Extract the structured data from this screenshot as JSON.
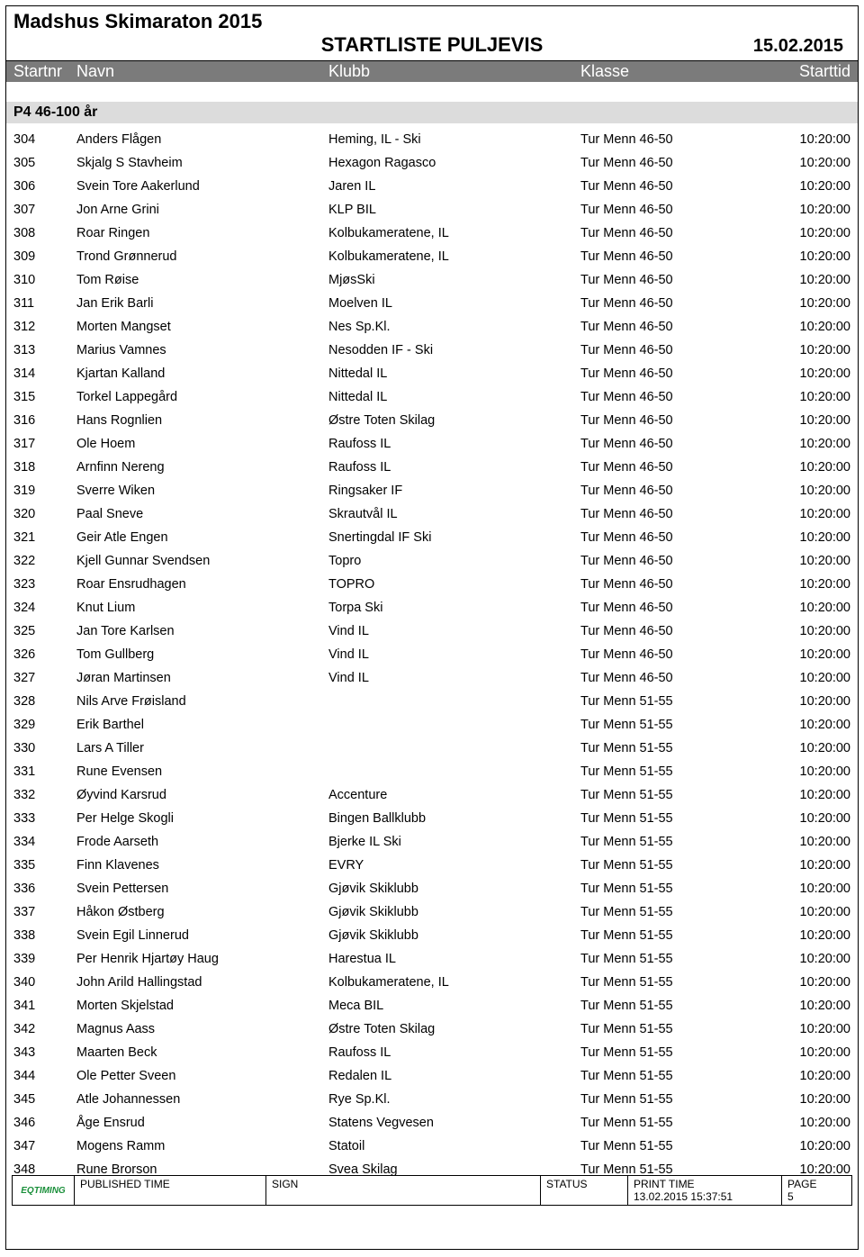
{
  "header": {
    "event_title": "Madshus Skimaraton 2015",
    "list_title": "STARTLISTE PULJEVIS",
    "date": "15.02.2015"
  },
  "columns": {
    "startnr": "Startnr",
    "navn": "Navn",
    "klubb": "Klubb",
    "klasse": "Klasse",
    "starttid": "Starttid"
  },
  "group": {
    "label": "P4 46-100 år"
  },
  "rows": [
    {
      "nr": "304",
      "navn": "Anders Flågen",
      "klubb": "Heming, IL - Ski",
      "klasse": "Tur Menn 46-50",
      "tid": "10:20:00"
    },
    {
      "nr": "305",
      "navn": "Skjalg S Stavheim",
      "klubb": "Hexagon Ragasco",
      "klasse": "Tur Menn 46-50",
      "tid": "10:20:00"
    },
    {
      "nr": "306",
      "navn": "Svein Tore Aakerlund",
      "klubb": "Jaren IL",
      "klasse": "Tur Menn 46-50",
      "tid": "10:20:00"
    },
    {
      "nr": "307",
      "navn": "Jon Arne Grini",
      "klubb": "KLP BIL",
      "klasse": "Tur Menn 46-50",
      "tid": "10:20:00"
    },
    {
      "nr": "308",
      "navn": "Roar Ringen",
      "klubb": "Kolbukameratene, IL",
      "klasse": "Tur Menn 46-50",
      "tid": "10:20:00"
    },
    {
      "nr": "309",
      "navn": "Trond Grønnerud",
      "klubb": "Kolbukameratene, IL",
      "klasse": "Tur Menn 46-50",
      "tid": "10:20:00"
    },
    {
      "nr": "310",
      "navn": "Tom Røise",
      "klubb": "MjøsSki",
      "klasse": "Tur Menn 46-50",
      "tid": "10:20:00"
    },
    {
      "nr": "311",
      "navn": "Jan Erik Barli",
      "klubb": "Moelven IL",
      "klasse": "Tur Menn 46-50",
      "tid": "10:20:00"
    },
    {
      "nr": "312",
      "navn": "Morten Mangset",
      "klubb": "Nes Sp.Kl.",
      "klasse": "Tur Menn 46-50",
      "tid": "10:20:00"
    },
    {
      "nr": "313",
      "navn": "Marius Vamnes",
      "klubb": "Nesodden IF - Ski",
      "klasse": "Tur Menn 46-50",
      "tid": "10:20:00"
    },
    {
      "nr": "314",
      "navn": "Kjartan Kalland",
      "klubb": "Nittedal IL",
      "klasse": "Tur Menn 46-50",
      "tid": "10:20:00"
    },
    {
      "nr": "315",
      "navn": "Torkel Lappegård",
      "klubb": "Nittedal IL",
      "klasse": "Tur Menn 46-50",
      "tid": "10:20:00"
    },
    {
      "nr": "316",
      "navn": "Hans Rognlien",
      "klubb": "Østre Toten Skilag",
      "klasse": "Tur Menn 46-50",
      "tid": "10:20:00"
    },
    {
      "nr": "317",
      "navn": "Ole Hoem",
      "klubb": "Raufoss IL",
      "klasse": "Tur Menn 46-50",
      "tid": "10:20:00"
    },
    {
      "nr": "318",
      "navn": "Arnfinn Nereng",
      "klubb": "Raufoss IL",
      "klasse": "Tur Menn 46-50",
      "tid": "10:20:00"
    },
    {
      "nr": "319",
      "navn": "Sverre Wiken",
      "klubb": "Ringsaker IF",
      "klasse": "Tur Menn 46-50",
      "tid": "10:20:00"
    },
    {
      "nr": "320",
      "navn": "Paal Sneve",
      "klubb": "Skrautvål IL",
      "klasse": "Tur Menn 46-50",
      "tid": "10:20:00"
    },
    {
      "nr": "321",
      "navn": "Geir Atle Engen",
      "klubb": "Snertingdal IF Ski",
      "klasse": "Tur Menn 46-50",
      "tid": "10:20:00"
    },
    {
      "nr": "322",
      "navn": "Kjell Gunnar Svendsen",
      "klubb": "Topro",
      "klasse": "Tur Menn 46-50",
      "tid": "10:20:00"
    },
    {
      "nr": "323",
      "navn": "Roar Ensrudhagen",
      "klubb": "TOPRO",
      "klasse": "Tur Menn 46-50",
      "tid": "10:20:00"
    },
    {
      "nr": "324",
      "navn": "Knut Lium",
      "klubb": "Torpa Ski",
      "klasse": "Tur Menn 46-50",
      "tid": "10:20:00"
    },
    {
      "nr": "325",
      "navn": "Jan Tore Karlsen",
      "klubb": "Vind IL",
      "klasse": "Tur Menn 46-50",
      "tid": "10:20:00"
    },
    {
      "nr": "326",
      "navn": "Tom Gullberg",
      "klubb": "Vind IL",
      "klasse": "Tur Menn 46-50",
      "tid": "10:20:00"
    },
    {
      "nr": "327",
      "navn": "Jøran Martinsen",
      "klubb": "Vind IL",
      "klasse": "Tur Menn 46-50",
      "tid": "10:20:00"
    },
    {
      "nr": "328",
      "navn": "Nils Arve Frøisland",
      "klubb": "",
      "klasse": "Tur Menn 51-55",
      "tid": "10:20:00"
    },
    {
      "nr": "329",
      "navn": "Erik Barthel",
      "klubb": "",
      "klasse": "Tur Menn 51-55",
      "tid": "10:20:00"
    },
    {
      "nr": "330",
      "navn": "Lars A Tiller",
      "klubb": "",
      "klasse": "Tur Menn 51-55",
      "tid": "10:20:00"
    },
    {
      "nr": "331",
      "navn": "Rune Evensen",
      "klubb": "",
      "klasse": "Tur Menn 51-55",
      "tid": "10:20:00"
    },
    {
      "nr": "332",
      "navn": "Øyvind Karsrud",
      "klubb": "Accenture",
      "klasse": "Tur Menn 51-55",
      "tid": "10:20:00"
    },
    {
      "nr": "333",
      "navn": "Per Helge Skogli",
      "klubb": "Bingen Ballklubb",
      "klasse": "Tur Menn 51-55",
      "tid": "10:20:00"
    },
    {
      "nr": "334",
      "navn": "Frode Aarseth",
      "klubb": "Bjerke IL Ski",
      "klasse": "Tur Menn 51-55",
      "tid": "10:20:00"
    },
    {
      "nr": "335",
      "navn": "Finn Klavenes",
      "klubb": "EVRY",
      "klasse": "Tur Menn 51-55",
      "tid": "10:20:00"
    },
    {
      "nr": "336",
      "navn": "Svein Pettersen",
      "klubb": "Gjøvik Skiklubb",
      "klasse": "Tur Menn 51-55",
      "tid": "10:20:00"
    },
    {
      "nr": "337",
      "navn": "Håkon Østberg",
      "klubb": "Gjøvik Skiklubb",
      "klasse": "Tur Menn 51-55",
      "tid": "10:20:00"
    },
    {
      "nr": "338",
      "navn": "Svein Egil Linnerud",
      "klubb": "Gjøvik Skiklubb",
      "klasse": "Tur Menn 51-55",
      "tid": "10:20:00"
    },
    {
      "nr": "339",
      "navn": "Per Henrik Hjartøy Haug",
      "klubb": "Harestua IL",
      "klasse": "Tur Menn 51-55",
      "tid": "10:20:00"
    },
    {
      "nr": "340",
      "navn": "John Arild Hallingstad",
      "klubb": "Kolbukameratene, IL",
      "klasse": "Tur Menn 51-55",
      "tid": "10:20:00"
    },
    {
      "nr": "341",
      "navn": "Morten Skjelstad",
      "klubb": "Meca BIL",
      "klasse": "Tur Menn 51-55",
      "tid": "10:20:00"
    },
    {
      "nr": "342",
      "navn": "Magnus Aass",
      "klubb": "Østre Toten Skilag",
      "klasse": "Tur Menn 51-55",
      "tid": "10:20:00"
    },
    {
      "nr": "343",
      "navn": "Maarten Beck",
      "klubb": "Raufoss IL",
      "klasse": "Tur Menn 51-55",
      "tid": "10:20:00"
    },
    {
      "nr": "344",
      "navn": "Ole Petter Sveen",
      "klubb": "Redalen IL",
      "klasse": "Tur Menn 51-55",
      "tid": "10:20:00"
    },
    {
      "nr": "345",
      "navn": "Atle Johannessen",
      "klubb": "Rye Sp.Kl.",
      "klasse": "Tur Menn 51-55",
      "tid": "10:20:00"
    },
    {
      "nr": "346",
      "navn": "Åge Ensrud",
      "klubb": "Statens Vegvesen",
      "klasse": "Tur Menn 51-55",
      "tid": "10:20:00"
    },
    {
      "nr": "347",
      "navn": "Mogens Ramm",
      "klubb": "Statoil",
      "klasse": "Tur Menn 51-55",
      "tid": "10:20:00"
    },
    {
      "nr": "348",
      "navn": "Rune Brorson",
      "klubb": "Svea Skilag",
      "klasse": "Tur Menn 51-55",
      "tid": "10:20:00"
    }
  ],
  "footer": {
    "logo": "EQTIMING",
    "published_label": "PUBLISHED TIME",
    "sign_label": "SIGN",
    "status_label": "STATUS",
    "print_label": "PRINT TIME",
    "print_value": "13.02.2015 15:37:51",
    "page_label": "PAGE",
    "page_value": "5"
  }
}
